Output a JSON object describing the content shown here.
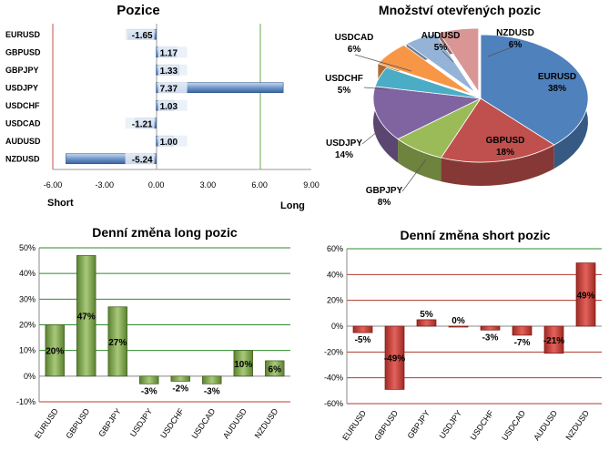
{
  "chart_data": [
    {
      "type": "bar",
      "orientation": "horizontal",
      "title": "Pozice",
      "categories": [
        "EURUSD",
        "GBPUSD",
        "GBPJPY",
        "USDJPY",
        "USDCHF",
        "USDCAD",
        "AUDUSD",
        "NZDUSD"
      ],
      "values": [
        -1.65,
        1.17,
        1.33,
        7.37,
        1.03,
        -1.21,
        1.0,
        -5.24
      ],
      "value_labels": [
        "-1.65",
        "1.17",
        "1.33",
        "7.37",
        "1.03",
        "-1.21",
        "1.00",
        "-5.24"
      ],
      "xlim": [
        -6,
        9
      ],
      "xticks": [
        "-6.00",
        "-3.00",
        "0.00",
        "3.00",
        "6.00",
        "9.00"
      ],
      "left_label": "Short",
      "right_label": "Long",
      "color": "#4a78b4"
    },
    {
      "type": "pie",
      "title": "Množství otevřených pozic",
      "labels": [
        "EURUSD",
        "GBPUSD",
        "GBPJPY",
        "USDJPY",
        "USDCHF",
        "USDCAD",
        "AUDUSD",
        "NZDUSD"
      ],
      "values": [
        38,
        18,
        8,
        14,
        5,
        6,
        5,
        6
      ],
      "value_labels": [
        "38%",
        "18%",
        "8%",
        "14%",
        "5%",
        "6%",
        "5%",
        "6%"
      ],
      "colors": [
        "#4f81bd",
        "#c0504d",
        "#9bbb59",
        "#8064a2",
        "#4bacc6",
        "#f79646",
        "#95b3d7",
        "#d99694"
      ]
    },
    {
      "type": "bar",
      "title": "Denní změna long pozic",
      "categories": [
        "EURUSD",
        "GBPUSD",
        "GBPJPY",
        "USDJPY",
        "USDCHF",
        "USDCAD",
        "AUDUSD",
        "NZDUSD"
      ],
      "values": [
        20,
        47,
        27,
        -3,
        -2,
        -3,
        10,
        6
      ],
      "value_labels": [
        "20%",
        "47%",
        "27%",
        "-3%",
        "-2%",
        "-3%",
        "10%",
        "6%"
      ],
      "ylim": [
        -10,
        50
      ],
      "yticks": [
        "-10%",
        "0%",
        "10%",
        "20%",
        "30%",
        "40%",
        "50%"
      ],
      "color": "#6f9a3e"
    },
    {
      "type": "bar",
      "title": "Denní změna short pozic",
      "categories": [
        "EURUSD",
        "GBPUSD",
        "GBPJPY",
        "USDJPY",
        "USDCHF",
        "USDCAD",
        "AUDUSD",
        "NZDUSD"
      ],
      "values": [
        -5,
        -49,
        5,
        0,
        -3,
        -7,
        -21,
        49
      ],
      "value_labels": [
        "-5%",
        "-49%",
        "5%",
        "0%",
        "-3%",
        "-7%",
        "-21%",
        "49%"
      ],
      "ylim": [
        -60,
        60
      ],
      "yticks": [
        "-60%",
        "-40%",
        "-20%",
        "0%",
        "20%",
        "40%",
        "60%"
      ],
      "color": "#c0392b"
    }
  ]
}
